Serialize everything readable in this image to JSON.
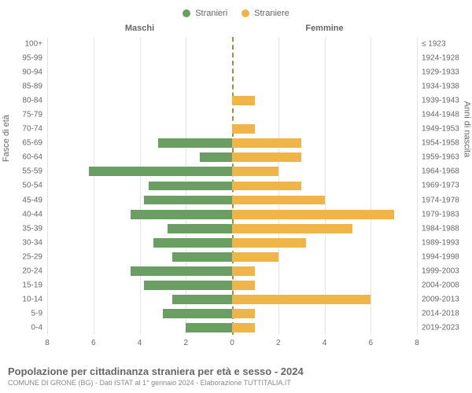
{
  "chart": {
    "type": "pyramid-bar",
    "legend": [
      {
        "label": "Stranieri",
        "color": "#6b9e63"
      },
      {
        "label": "Straniere",
        "color": "#f0b548"
      }
    ],
    "header_left": "Maschi",
    "header_right": "Femmine",
    "axis_left_title": "Fasce di età",
    "axis_right_title": "Anni di nascita",
    "xmax": 8,
    "xtick_step": 2,
    "xticks": [
      8,
      6,
      4,
      2,
      0,
      2,
      4,
      6,
      8
    ],
    "background_color": "#ffffff",
    "grid_color": "#e5e5e5",
    "center_line_color": "#99904a",
    "bar_color_left": "#6b9e63",
    "bar_color_right": "#f0b548",
    "label_color": "#666666",
    "label_fontsize": 10,
    "rows": [
      {
        "age": "100+",
        "birth": "≤ 1923",
        "m": 0,
        "f": 0
      },
      {
        "age": "95-99",
        "birth": "1924-1928",
        "m": 0,
        "f": 0
      },
      {
        "age": "90-94",
        "birth": "1929-1933",
        "m": 0,
        "f": 0
      },
      {
        "age": "85-89",
        "birth": "1934-1938",
        "m": 0,
        "f": 0
      },
      {
        "age": "80-84",
        "birth": "1939-1943",
        "m": 0,
        "f": 1
      },
      {
        "age": "75-79",
        "birth": "1944-1948",
        "m": 0,
        "f": 0
      },
      {
        "age": "70-74",
        "birth": "1949-1953",
        "m": 0,
        "f": 1
      },
      {
        "age": "65-69",
        "birth": "1954-1958",
        "m": 3.2,
        "f": 3
      },
      {
        "age": "60-64",
        "birth": "1959-1963",
        "m": 1.4,
        "f": 3
      },
      {
        "age": "55-59",
        "birth": "1964-1968",
        "m": 6.2,
        "f": 2
      },
      {
        "age": "50-54",
        "birth": "1969-1973",
        "m": 3.6,
        "f": 3
      },
      {
        "age": "45-49",
        "birth": "1974-1978",
        "m": 3.8,
        "f": 4
      },
      {
        "age": "40-44",
        "birth": "1979-1983",
        "m": 4.4,
        "f": 7
      },
      {
        "age": "35-39",
        "birth": "1984-1988",
        "m": 2.8,
        "f": 5.2
      },
      {
        "age": "30-34",
        "birth": "1989-1993",
        "m": 3.4,
        "f": 3.2
      },
      {
        "age": "25-29",
        "birth": "1994-1998",
        "m": 2.6,
        "f": 2
      },
      {
        "age": "20-24",
        "birth": "1999-2003",
        "m": 4.4,
        "f": 1
      },
      {
        "age": "15-19",
        "birth": "2004-2008",
        "m": 3.8,
        "f": 1
      },
      {
        "age": "10-14",
        "birth": "2009-2013",
        "m": 2.6,
        "f": 6
      },
      {
        "age": "5-9",
        "birth": "2014-2018",
        "m": 3,
        "f": 1
      },
      {
        "age": "0-4",
        "birth": "2019-2023",
        "m": 2,
        "f": 1
      }
    ]
  },
  "footer": {
    "title": "Popolazione per cittadinanza straniera per età e sesso - 2024",
    "subtitle": "COMUNE DI GRONE (BG) - Dati ISTAT al 1° gennaio 2024 - Elaborazione TUTTITALIA.IT"
  }
}
